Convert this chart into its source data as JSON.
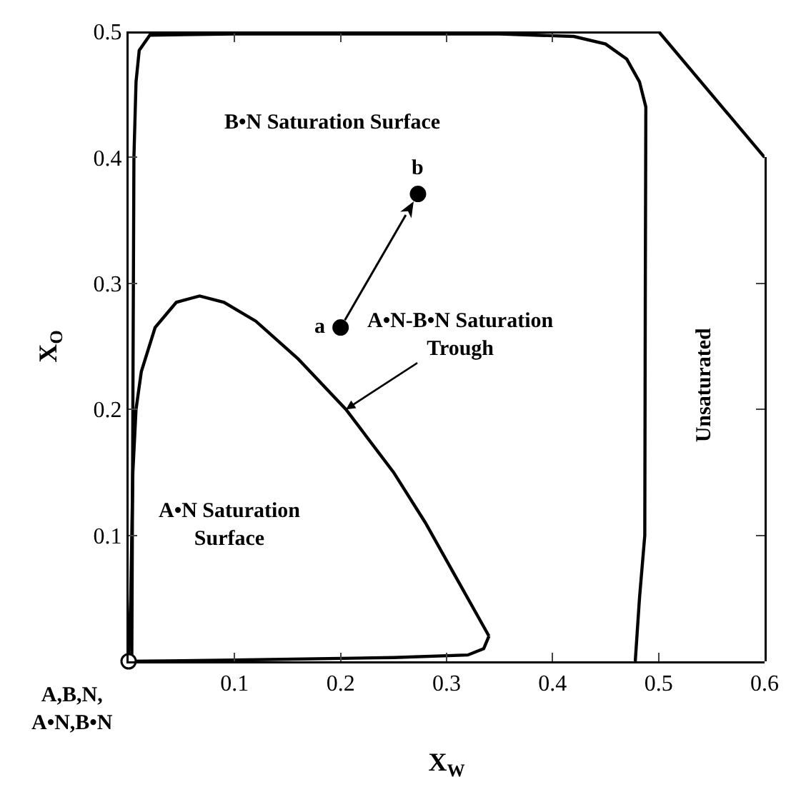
{
  "chart_data": {
    "type": "line",
    "xlabel": "X$_{W}$",
    "ylabel": "X$_{O}$",
    "xlim": [
      0,
      0.6
    ],
    "ylim": [
      0,
      0.5
    ],
    "xticks": [
      0.1,
      0.2,
      0.3,
      0.4,
      0.5,
      0.6
    ],
    "yticks": [
      0.1,
      0.2,
      0.3,
      0.4,
      0.5
    ],
    "grid": false,
    "series": [
      {
        "color": "#000000",
        "x": [
          0,
          0.002,
          0.004,
          0.007,
          0.012,
          0.025,
          0.045,
          0.067,
          0.09,
          0.12,
          0.16,
          0.205,
          0.25,
          0.28,
          0.31,
          0.33,
          0.34
        ],
        "values": [
          0,
          0.05,
          0.15,
          0.2,
          0.23,
          0.265,
          0.285,
          0.29,
          0.285,
          0.27,
          0.24,
          0.2,
          0.15,
          0.11,
          0.065,
          0.035,
          0.02
        ]
      },
      {
        "color": "#000000",
        "x": [
          0,
          0.1,
          0.25,
          0.32,
          0.335,
          0.34
        ],
        "values": [
          0,
          0.001,
          0.003,
          0.005,
          0.01,
          0.02
        ]
      },
      {
        "color": "#000000",
        "x": [
          0.003,
          0.004,
          0.005,
          0.007,
          0.01,
          0.02,
          0.1,
          0.35,
          0.42,
          0.45,
          0.47,
          0.482,
          0.488,
          0.4875,
          0.487,
          0.482,
          0.478
        ],
        "values": [
          0,
          0.2,
          0.4,
          0.46,
          0.485,
          0.497,
          0.498,
          0.498,
          0.496,
          0.49,
          0.478,
          0.46,
          0.44,
          0.3,
          0.1,
          0.05,
          0
        ]
      },
      {
        "color": "#000000",
        "x": [
          0.5,
          0.6
        ],
        "values": [
          0.5,
          0.4
        ]
      },
      {
        "type": "scatter",
        "color": "#000000",
        "x": [
          0.2,
          0.273
        ],
        "values": [
          0.265,
          0.371
        ]
      },
      {
        "type": "scatter",
        "color": "#ffffff",
        "x": [
          0
        ],
        "values": [
          0
        ]
      }
    ],
    "annotations": [
      "B•N Saturation Surface",
      {
        "text": "a",
        "x": 0.2,
        "y": 0.265
      },
      {
        "text": "b",
        "x": 0.273,
        "y": 0.371
      },
      {
        "text": "A•N-B•N Saturation\nTrough",
        "x": 0.205,
        "y": 0.2
      },
      "A•N Saturation\nSurface",
      "Unsaturated",
      {
        "text": "A,B,N,\nA•N,B•N",
        "x": 0,
        "y": 0
      }
    ]
  }
}
